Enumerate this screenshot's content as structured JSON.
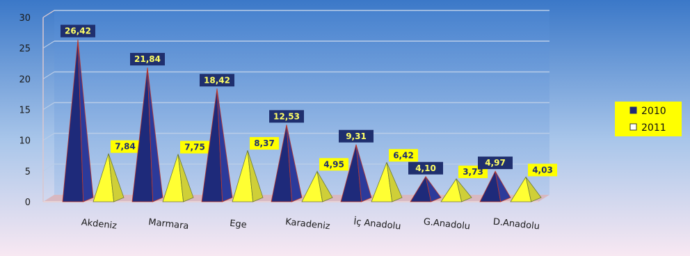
{
  "chart_data": {
    "type": "bar",
    "style": "3d-pyramid",
    "categories": [
      "Akdeniz",
      "Marmara",
      "Ege",
      "Karadeniz",
      "İç Anadolu",
      "G.Anadolu",
      "D.Anadolu"
    ],
    "series": [
      {
        "name": "2010",
        "values": [
          26.42,
          21.84,
          18.42,
          12.53,
          9.31,
          4.1,
          4.97
        ],
        "labels": [
          "26,42",
          "21,84",
          "18,42",
          "12,53",
          "9,31",
          "4,10",
          "4,97"
        ],
        "color": "#1f2a78"
      },
      {
        "name": "2011",
        "values": [
          7.84,
          7.75,
          8.37,
          4.95,
          6.42,
          3.73,
          4.03
        ],
        "labels": [
          "7,84",
          "7,75",
          "8,37",
          "4,95",
          "6,42",
          "3,73",
          "4,03"
        ],
        "color": "#ffff33"
      }
    ],
    "yticks": [
      "0",
      "5",
      "10",
      "15",
      "20",
      "25",
      "30"
    ],
    "ylim": [
      0,
      30
    ],
    "grid": true,
    "legend": "right",
    "colors": {
      "background_top": "#3f7fcf",
      "background_bottom": "#f7e6f0",
      "label_2010_bg": "#1f2f6e",
      "label_2010_text": "#ffff66",
      "label_2011_bg": "#ffff00",
      "label_2011_text": "#1f2f6e",
      "floor": "#d9b3b8"
    }
  }
}
